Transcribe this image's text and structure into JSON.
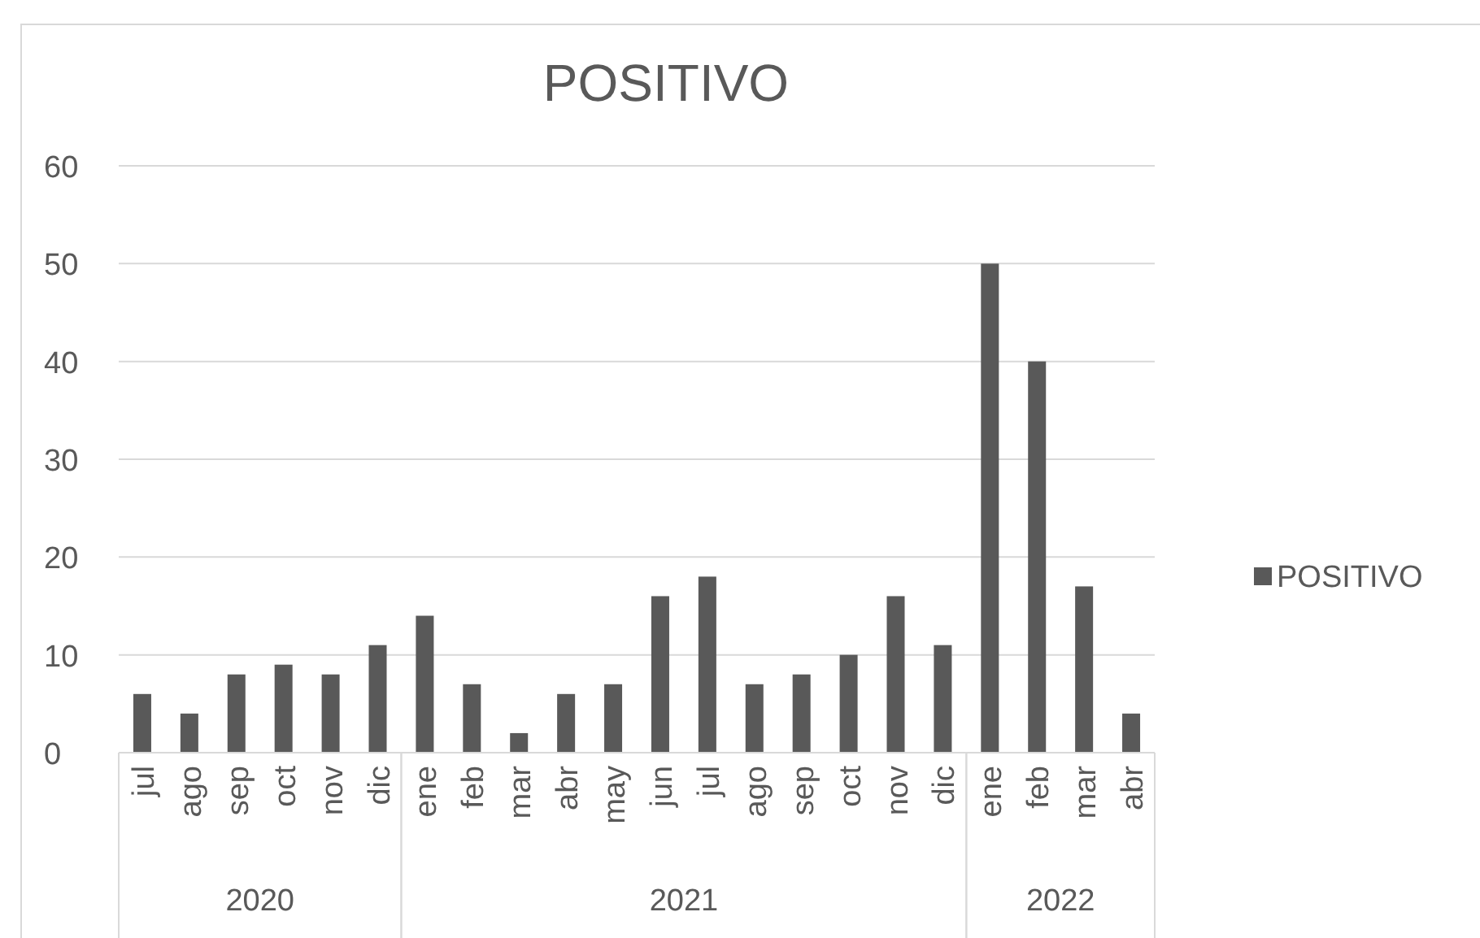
{
  "chart_data": {
    "type": "bar",
    "title": "POSITIVO",
    "categories": [
      "jul",
      "ago",
      "sep",
      "oct",
      "nov",
      "dic",
      "ene",
      "feb",
      "mar",
      "abr",
      "may",
      "jun",
      "jul",
      "ago",
      "sep",
      "oct",
      "nov",
      "dic",
      "ene",
      "feb",
      "mar",
      "abr"
    ],
    "series": [
      {
        "name": "POSITIVO",
        "color": "#595959",
        "values": [
          6,
          4,
          8,
          9,
          8,
          11,
          14,
          7,
          2,
          6,
          7,
          16,
          18,
          7,
          8,
          10,
          16,
          11,
          50,
          40,
          17,
          4
        ]
      }
    ],
    "ylim": [
      0,
      60
    ],
    "yticks": [
      0,
      10,
      20,
      30,
      40,
      50,
      60
    ],
    "grid": "y",
    "legend": "right",
    "annotations": [
      "2020",
      "2021",
      "2022"
    ]
  }
}
